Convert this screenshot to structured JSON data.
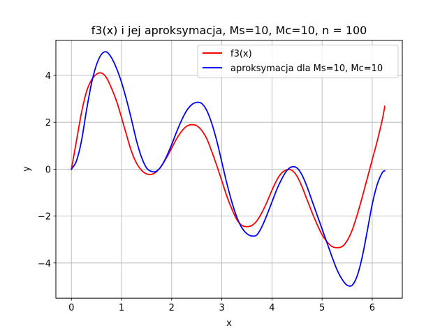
{
  "chart_data": {
    "type": "line",
    "title": "f3(x) i jej aproksymacja, Ms=10, Mc=10, n = 100",
    "xlabel": "x",
    "ylabel": "y",
    "xlim": [
      -0.31,
      6.6
    ],
    "ylim": [
      -5.5,
      5.5
    ],
    "grid": true,
    "legend_position": "upper-right",
    "x_ticks": [
      0,
      1,
      2,
      3,
      4,
      5,
      6
    ],
    "x_tick_labels": [
      "0",
      "1",
      "2",
      "3",
      "4",
      "5",
      "6"
    ],
    "y_ticks": [
      -4,
      -2,
      0,
      2,
      4
    ],
    "y_tick_labels": [
      "−4",
      "−2",
      "0",
      "2",
      "4"
    ],
    "series": [
      {
        "name": "f3(x)",
        "color": "#ff0000",
        "x": [
          0,
          0.1,
          0.2,
          0.3,
          0.4,
          0.5,
          0.6,
          0.7,
          0.8,
          0.9,
          1.0,
          1.1,
          1.2,
          1.3,
          1.4,
          1.5,
          1.6,
          1.7,
          1.8,
          1.9,
          2.0,
          2.1,
          2.2,
          2.3,
          2.4,
          2.5,
          2.6,
          2.7,
          2.8,
          2.9,
          3.0,
          3.1,
          3.2,
          3.3,
          3.4,
          3.5,
          3.6,
          3.7,
          3.8,
          3.9,
          4.0,
          4.1,
          4.2,
          4.3,
          4.4,
          4.5,
          4.6,
          4.7,
          4.8,
          4.9,
          5.0,
          5.1,
          5.2,
          5.3,
          5.4,
          5.5,
          5.6,
          5.7,
          5.8,
          5.9,
          6.0,
          6.1,
          6.2,
          6.25
        ],
        "y": [
          0,
          1.2,
          2.4,
          3.3,
          3.8,
          4.05,
          4.1,
          3.9,
          3.45,
          2.9,
          2.2,
          1.45,
          0.75,
          0.25,
          -0.05,
          -0.2,
          -0.22,
          -0.1,
          0.15,
          0.5,
          0.9,
          1.3,
          1.62,
          1.83,
          1.9,
          1.85,
          1.65,
          1.3,
          0.75,
          0.15,
          -0.5,
          -1.15,
          -1.7,
          -2.15,
          -2.4,
          -2.45,
          -2.4,
          -2.2,
          -1.85,
          -1.4,
          -0.9,
          -0.45,
          -0.15,
          -0.03,
          -0.05,
          -0.3,
          -0.75,
          -1.3,
          -1.85,
          -2.35,
          -2.8,
          -3.1,
          -3.3,
          -3.35,
          -3.3,
          -3.05,
          -2.6,
          -1.95,
          -1.2,
          -0.4,
          0.4,
          1.2,
          2.1,
          2.68
        ]
      },
      {
        "name": "aproksymacja dla Ms=10, Mc=10",
        "color": "#0000ff",
        "x": [
          0,
          0.1,
          0.2,
          0.3,
          0.4,
          0.5,
          0.6,
          0.7,
          0.8,
          0.9,
          1.0,
          1.1,
          1.2,
          1.3,
          1.4,
          1.5,
          1.6,
          1.7,
          1.8,
          1.9,
          2.0,
          2.1,
          2.2,
          2.3,
          2.4,
          2.5,
          2.6,
          2.7,
          2.8,
          2.9,
          3.0,
          3.1,
          3.2,
          3.3,
          3.4,
          3.5,
          3.6,
          3.7,
          3.8,
          3.9,
          4.0,
          4.1,
          4.2,
          4.3,
          4.4,
          4.5,
          4.6,
          4.7,
          4.8,
          4.9,
          5.0,
          5.1,
          5.2,
          5.3,
          5.4,
          5.5,
          5.6,
          5.7,
          5.8,
          5.9,
          6.0,
          6.1,
          6.2,
          6.25
        ],
        "y": [
          0,
          0.35,
          1.2,
          2.5,
          3.65,
          4.45,
          4.9,
          5.0,
          4.75,
          4.3,
          3.7,
          2.95,
          2.1,
          1.2,
          0.5,
          0.05,
          -0.1,
          -0.08,
          0.15,
          0.55,
          1.05,
          1.6,
          2.1,
          2.5,
          2.75,
          2.85,
          2.8,
          2.5,
          1.95,
          1.2,
          0.3,
          -0.6,
          -1.4,
          -2.05,
          -2.5,
          -2.75,
          -2.85,
          -2.8,
          -2.45,
          -1.95,
          -1.4,
          -0.85,
          -0.4,
          -0.05,
          0.1,
          0.05,
          -0.25,
          -0.75,
          -1.35,
          -1.95,
          -2.55,
          -3.15,
          -3.75,
          -4.3,
          -4.7,
          -4.95,
          -4.95,
          -4.55,
          -3.75,
          -2.65,
          -1.5,
          -0.65,
          -0.15,
          -0.07
        ]
      }
    ]
  }
}
